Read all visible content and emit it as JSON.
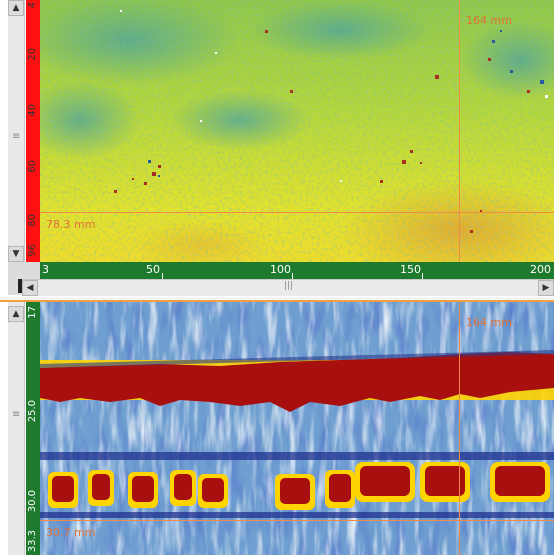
{
  "top_view": {
    "cursor_x_label": "164 mm",
    "cursor_y_label": "78.3 mm",
    "y_ticks": [
      "4",
      "20",
      "40",
      "60",
      "80",
      "96"
    ],
    "x_ticks": [
      "3",
      "50",
      "100",
      "150",
      "200"
    ],
    "scroll_grip": "|||",
    "left_arrow": "◀",
    "right_arrow": "▶",
    "up_arrow": "▲",
    "down_arrow": "▼",
    "grip": "≡"
  },
  "bottom_view": {
    "cursor_x_label": "164 mm",
    "cursor_y_label": "30.7 mm",
    "y_ticks": [
      "17",
      "25.0",
      "30.0",
      "33.3"
    ],
    "up_arrow": "▲",
    "grip": "≡"
  },
  "colors": {
    "ruler_red": "#ff1010",
    "ruler_green": "#1e7a2c",
    "cursor": "#f08a4a",
    "panel_border": "#f0a040"
  }
}
